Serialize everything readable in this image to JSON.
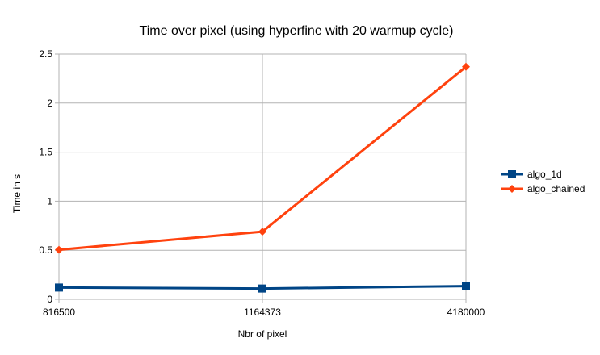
{
  "chart_data": {
    "type": "line",
    "title": "Time over pixel (using hyperfine with 20 warmup cycle)",
    "xlabel": "Nbr of pixel",
    "ylabel": "Time in s",
    "categories": [
      "816500",
      "1164373",
      "4180000"
    ],
    "ylim": [
      0,
      2.5
    ],
    "yticks": [
      "0",
      "0.5",
      "1",
      "1.5",
      "2",
      "2.5"
    ],
    "grid": true,
    "legend_position": "right",
    "series": [
      {
        "name": "algo_1d",
        "values": [
          0.12,
          0.11,
          0.135
        ],
        "color": "#004586",
        "marker": "square"
      },
      {
        "name": "algo_chained",
        "values": [
          0.505,
          0.69,
          2.37
        ],
        "color": "#ff420e",
        "marker": "diamond"
      }
    ]
  }
}
